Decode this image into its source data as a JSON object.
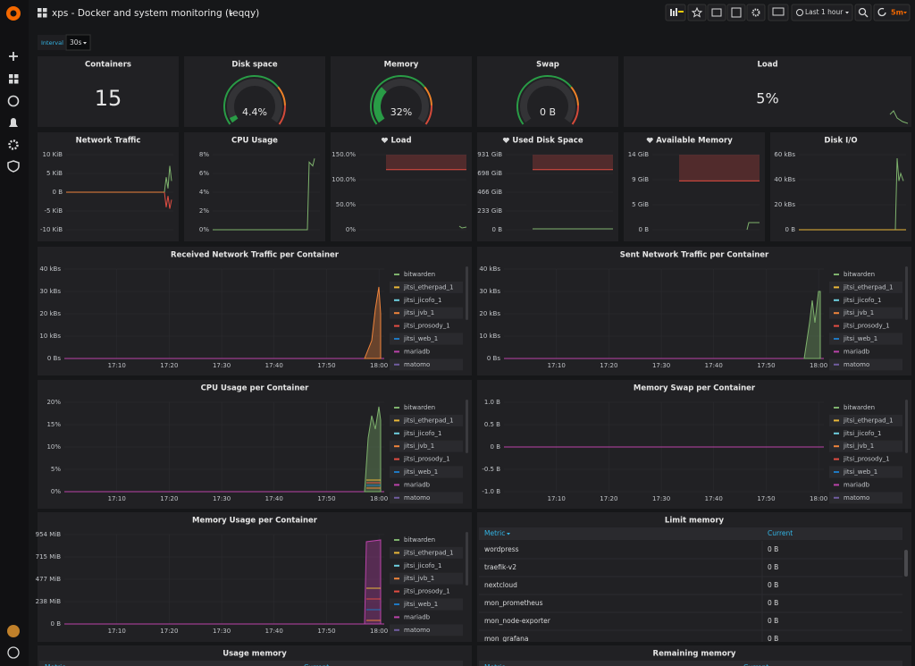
{
  "header": {
    "title": "xps - Docker and system monitoring (teqqy)",
    "time_range": "Last 1 hour",
    "refresh": "5m"
  },
  "variables": {
    "label": "Interval",
    "value": "30s"
  },
  "stats": [
    {
      "title": "Containers",
      "text": "15"
    },
    {
      "title": "Disk space",
      "value": 4.4,
      "value_label": "4.4%",
      "range": [
        0,
        100
      ]
    },
    {
      "title": "Memory",
      "value": 32,
      "value_label": "32%",
      "range": [
        0,
        100
      ]
    },
    {
      "title": "Swap",
      "value": 0,
      "value_label": "0 B",
      "range": [
        0,
        100
      ]
    },
    {
      "title": "Load",
      "text": "5%"
    }
  ],
  "small_graphs": [
    {
      "title": "Network Traffic",
      "yticks": [
        "10 KiB",
        "5 KiB",
        "0 B",
        "-5 KiB",
        "-10 KiB"
      ]
    },
    {
      "title": "CPU Usage",
      "yticks": [
        "8%",
        "6%",
        "4%",
        "2%",
        "0%"
      ]
    },
    {
      "title": "Load",
      "yticks": [
        "150.0%",
        "100.0%",
        "50.0%",
        "0%"
      ]
    },
    {
      "title": "Used Disk Space",
      "yticks": [
        "931 GiB",
        "698 GiB",
        "466 GiB",
        "233 GiB",
        "0 B"
      ]
    },
    {
      "title": "Available Memory",
      "yticks": [
        "14 GiB",
        "9 GiB",
        "5 GiB",
        "0 B"
      ]
    },
    {
      "title": "Disk I/O",
      "yticks": [
        "60 kBs",
        "40 kBs",
        "20 kBs",
        "0 B"
      ]
    }
  ],
  "time_axis": [
    "17:10",
    "17:20",
    "17:30",
    "17:40",
    "17:50",
    "18:00"
  ],
  "graphs": [
    {
      "title": "Received Network Traffic per Container",
      "yticks": [
        "40 kBs",
        "30 kBs",
        "20 kBs",
        "10 kBs",
        "0 Bs"
      ]
    },
    {
      "title": "Sent Network Traffic per Container",
      "yticks": [
        "40 kBs",
        "30 kBs",
        "20 kBs",
        "10 kBs",
        "0 Bs"
      ]
    },
    {
      "title": "CPU Usage per Container",
      "yticks": [
        "20%",
        "15%",
        "10%",
        "5%",
        "0%"
      ]
    },
    {
      "title": "Memory Swap per Container",
      "yticks": [
        "1.0 B",
        "0.5 B",
        "0 B",
        "-0.5 B",
        "-1.0 B"
      ]
    },
    {
      "title": "Memory Usage per Container",
      "yticks": [
        "954 MiB",
        "715 MiB",
        "477 MiB",
        "238 MiB",
        "0 B"
      ]
    }
  ],
  "legend": [
    {
      "name": "bitwarden",
      "color": "#7eb26d"
    },
    {
      "name": "jitsi_etherpad_1",
      "color": "#eab839"
    },
    {
      "name": "jitsi_jicofo_1",
      "color": "#6ed0e0"
    },
    {
      "name": "jitsi_jvb_1",
      "color": "#ef843c"
    },
    {
      "name": "jitsi_prosody_1",
      "color": "#e24d42"
    },
    {
      "name": "jitsi_web_1",
      "color": "#1f78c1"
    },
    {
      "name": "mariadb",
      "color": "#ba43a9"
    },
    {
      "name": "matomo",
      "color": "#705da0"
    }
  ],
  "table": {
    "title": "Limit memory",
    "columns": [
      "Metric",
      "Current"
    ],
    "rows": [
      [
        "wordpress",
        "0 B"
      ],
      [
        "traefik-v2",
        "0 B"
      ],
      [
        "nextcloud",
        "0 B"
      ],
      [
        "mon_prometheus",
        "0 B"
      ],
      [
        "mon_node-exporter",
        "0 B"
      ],
      [
        "mon_grafana",
        "0 B"
      ]
    ]
  },
  "bottom_panels": [
    {
      "title": "Usage memory",
      "columns": [
        "Metric",
        "Current"
      ]
    },
    {
      "title": "Remaining memory",
      "columns": [
        "Metric",
        "Current"
      ]
    }
  ]
}
